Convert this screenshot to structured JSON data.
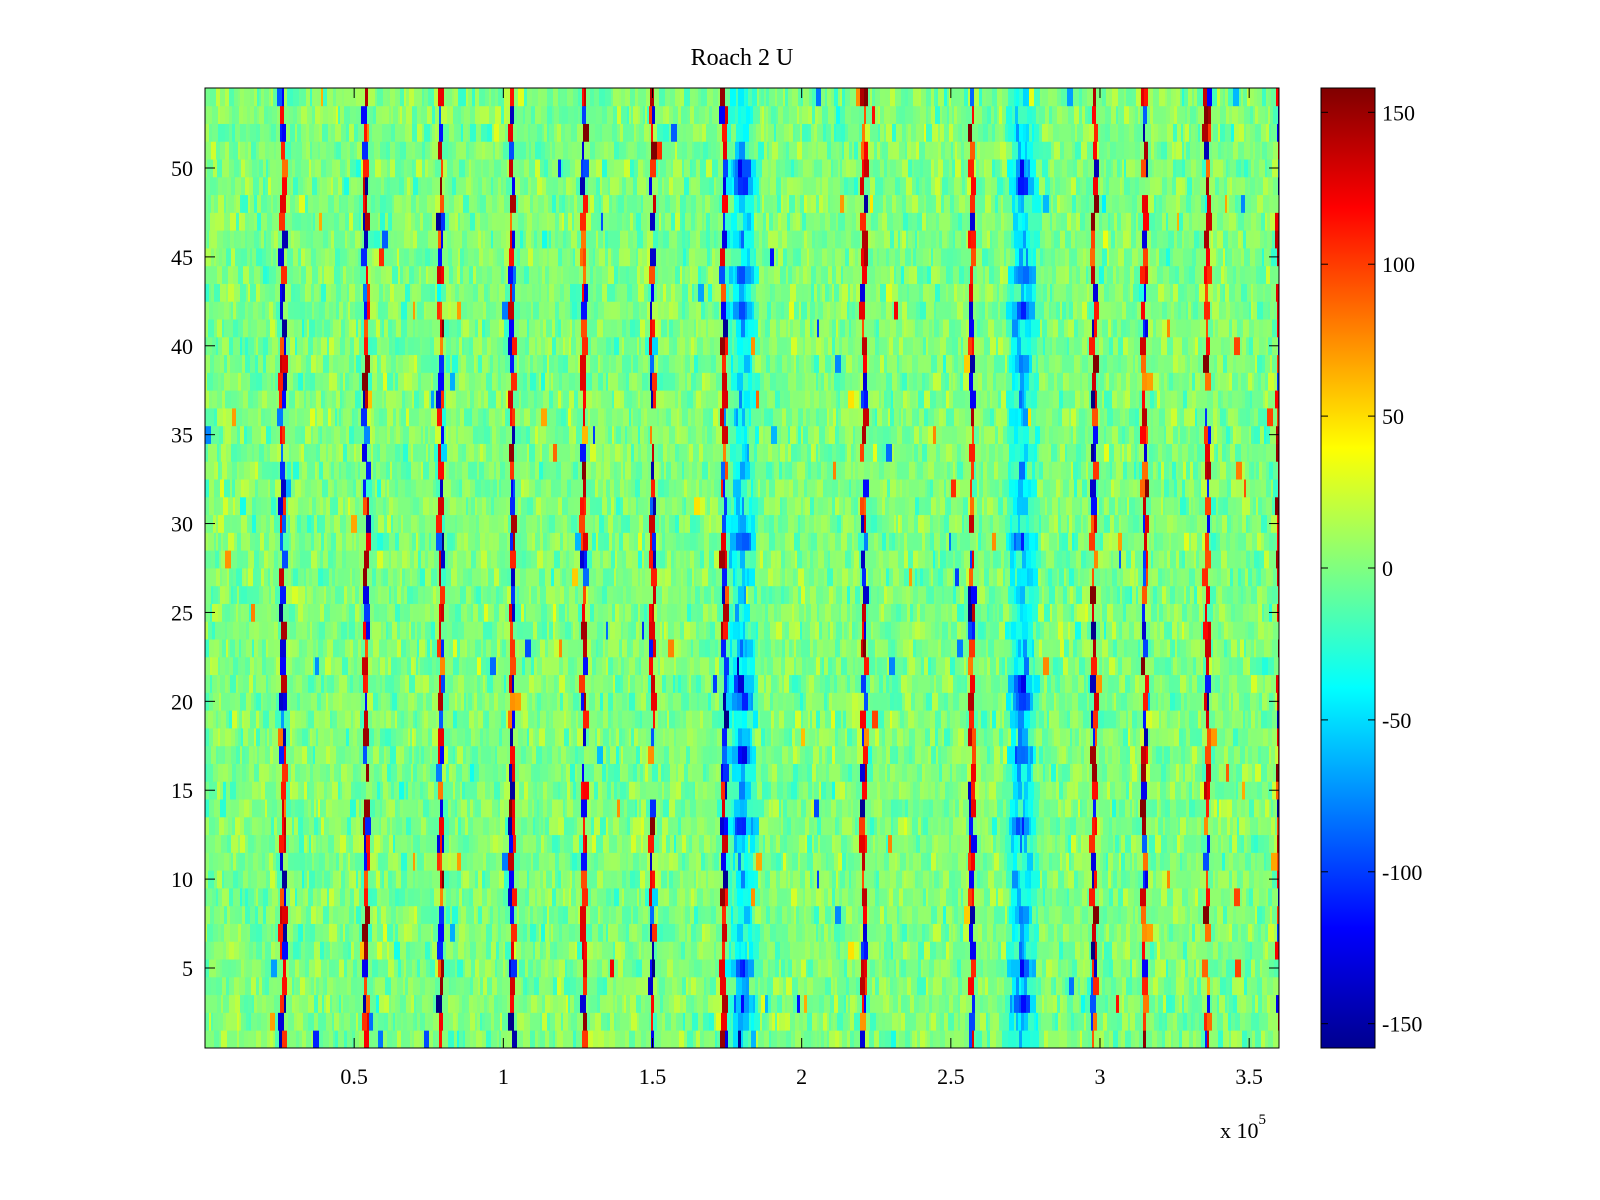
{
  "chart_data": {
    "type": "heatmap",
    "title": "Roach 2 U",
    "x_multiplier": "x 10",
    "x_multiplier_exponent": "5",
    "xlim": [
      0,
      3.6
    ],
    "ylim": [
      0.5,
      54.5
    ],
    "x_ticks": [
      {
        "value": 0.5,
        "label": "0.5"
      },
      {
        "value": 1,
        "label": "1"
      },
      {
        "value": 1.5,
        "label": "1.5"
      },
      {
        "value": 2,
        "label": "2"
      },
      {
        "value": 2.5,
        "label": "2.5"
      },
      {
        "value": 3,
        "label": "3"
      },
      {
        "value": 3.5,
        "label": "3.5"
      }
    ],
    "y_ticks": [
      {
        "value": 5,
        "label": "5"
      },
      {
        "value": 10,
        "label": "10"
      },
      {
        "value": 15,
        "label": "15"
      },
      {
        "value": 20,
        "label": "20"
      },
      {
        "value": 25,
        "label": "25"
      },
      {
        "value": 30,
        "label": "30"
      },
      {
        "value": 35,
        "label": "35"
      },
      {
        "value": 40,
        "label": "40"
      },
      {
        "value": 45,
        "label": "45"
      },
      {
        "value": 50,
        "label": "50"
      }
    ],
    "colorbar": {
      "colormap": "jet",
      "clim": [
        -158,
        158
      ],
      "ticks": [
        {
          "value": 150,
          "label": "150"
        },
        {
          "value": 100,
          "label": "100"
        },
        {
          "value": 50,
          "label": "50"
        },
        {
          "value": 0,
          "label": "0"
        },
        {
          "value": -50,
          "label": "-50"
        },
        {
          "value": -100,
          "label": "-100"
        },
        {
          "value": -150,
          "label": "-150"
        }
      ]
    },
    "rows": 54,
    "background_level": 0,
    "low_value_bands_x": [
      1.8,
      2.74
    ],
    "low_value_band_strong_rows": [
      3,
      5,
      13,
      17,
      20,
      21,
      29,
      42,
      44,
      49,
      50
    ],
    "periodic_spike_x": [
      0.26,
      0.54,
      0.79,
      1.03,
      1.27,
      1.5,
      1.74,
      2.21,
      2.57,
      2.98,
      3.15,
      3.36,
      3.6
    ]
  }
}
